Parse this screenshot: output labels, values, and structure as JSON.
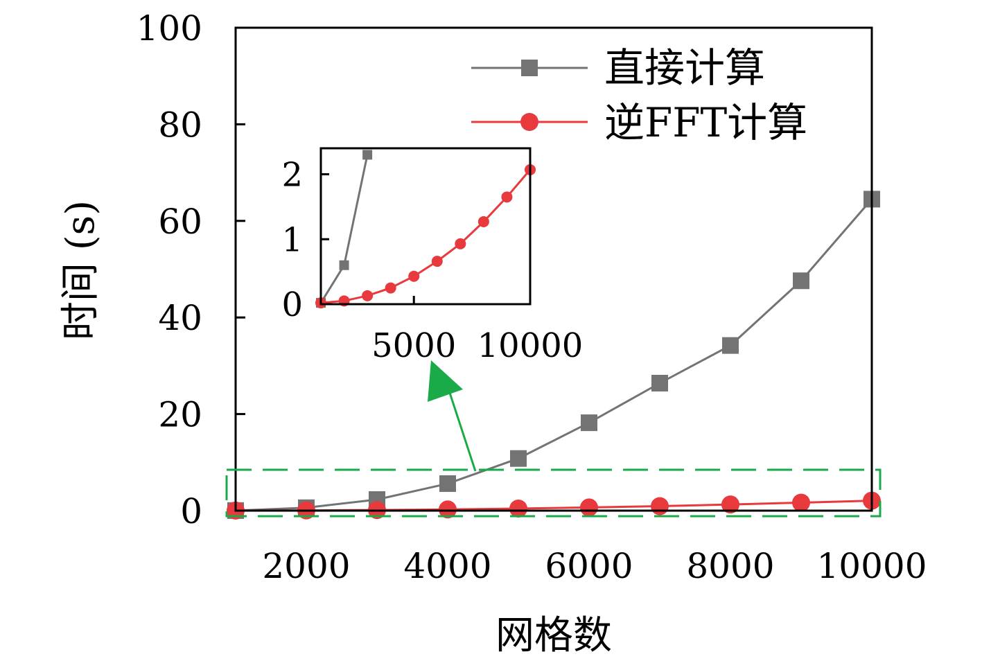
{
  "chart_data": {
    "type": "line",
    "xlabel": "网格数",
    "ylabel": "时间 (s)",
    "xlim": [
      1000,
      10000
    ],
    "ylim": [
      0,
      100
    ],
    "xticks": [
      2000,
      4000,
      6000,
      8000,
      10000
    ],
    "yticks": [
      0,
      20,
      40,
      60,
      80,
      100
    ],
    "grid": false,
    "legend_position": "top-right",
    "series": [
      {
        "name": "直接计算",
        "color": "#737373",
        "marker": "square",
        "x": [
          1000,
          2000,
          3000,
          4000,
          5000,
          6000,
          7000,
          8000,
          9000,
          10000
        ],
        "y": [
          0.02,
          0.6,
          2.3,
          5.6,
          10.8,
          18.2,
          26.4,
          34.2,
          47.6,
          64.5
        ]
      },
      {
        "name": "逆FFT计算",
        "color": "#e8393d",
        "marker": "circle",
        "x": [
          1000,
          2000,
          3000,
          4000,
          5000,
          6000,
          7000,
          8000,
          9000,
          10000
        ],
        "y": [
          0.02,
          0.05,
          0.13,
          0.25,
          0.43,
          0.66,
          0.93,
          1.27,
          1.65,
          2.07
        ]
      }
    ],
    "inset": {
      "xlim": [
        1000,
        10000
      ],
      "ylim": [
        0,
        2.4
      ],
      "xticks": [
        5000,
        10000
      ],
      "yticks": [
        0,
        1,
        2
      ],
      "series": [
        {
          "x": [
            1000,
            2000,
            3000
          ],
          "y": [
            0.02,
            0.6,
            2.3
          ]
        },
        {
          "x": [
            1000,
            2000,
            3000,
            4000,
            5000,
            6000,
            7000,
            8000,
            9000,
            10000
          ],
          "y": [
            0.02,
            0.05,
            0.13,
            0.25,
            0.43,
            0.66,
            0.93,
            1.27,
            1.65,
            2.07
          ]
        }
      ]
    },
    "annotation": {
      "box_color": "#1aaa48",
      "arrow_color": "#1aaa48"
    }
  }
}
